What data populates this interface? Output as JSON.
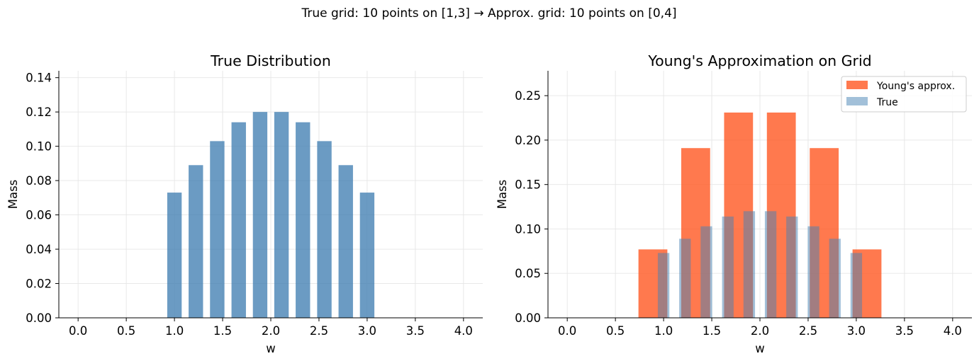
{
  "figure": {
    "suptitle": "True grid: 10 points on [1,3]  →  Approx. grid: 10 points on [0,4]"
  },
  "colors": {
    "true_bar": "#4682b4",
    "young_bar": "#ff5722",
    "grid": "#e6e6e6",
    "axis": "#000000"
  },
  "chart_data": [
    {
      "type": "bar",
      "title": "True Distribution",
      "xlabel": "w",
      "ylabel": "Mass",
      "xlim": [
        -0.2,
        4.2
      ],
      "ylim": [
        0,
        0.144
      ],
      "xticks": [
        0.0,
        0.5,
        1.0,
        1.5,
        2.0,
        2.5,
        3.0,
        3.5,
        4.0
      ],
      "xtick_labels": [
        "0.0",
        "0.5",
        "1.0",
        "1.5",
        "2.0",
        "2.5",
        "3.0",
        "3.5",
        "4.0"
      ],
      "yticks": [
        0.0,
        0.02,
        0.04,
        0.06,
        0.08,
        0.1,
        0.12,
        0.14
      ],
      "ytick_labels": [
        "0.00",
        "0.02",
        "0.04",
        "0.06",
        "0.08",
        "0.10",
        "0.12",
        "0.14"
      ],
      "grid": true,
      "legend": "none",
      "series": [
        {
          "color": "#4682b4",
          "opacity": 0.8,
          "bar_width": 0.15,
          "x": [
            1.0,
            1.222,
            1.444,
            1.667,
            1.889,
            2.111,
            2.333,
            2.556,
            2.778,
            3.0
          ],
          "values": [
            0.073,
            0.089,
            0.103,
            0.114,
            0.12,
            0.12,
            0.114,
            0.103,
            0.089,
            0.073
          ]
        }
      ]
    },
    {
      "type": "bar",
      "title": "Young's Approximation on Grid",
      "xlabel": "w",
      "ylabel": "Mass",
      "xlim": [
        -0.2,
        4.2
      ],
      "ylim": [
        0,
        0.278
      ],
      "xticks": [
        0.0,
        0.5,
        1.0,
        1.5,
        2.0,
        2.5,
        3.0,
        3.5,
        4.0
      ],
      "xtick_labels": [
        "0.0",
        "0.5",
        "1.0",
        "1.5",
        "2.0",
        "2.5",
        "3.0",
        "3.5",
        "4.0"
      ],
      "yticks": [
        0.0,
        0.05,
        0.1,
        0.15,
        0.2,
        0.25
      ],
      "ytick_labels": [
        "0.00",
        "0.05",
        "0.10",
        "0.15",
        "0.20",
        "0.25"
      ],
      "grid": true,
      "legend": "top-right",
      "series": [
        {
          "name": "Young's approx.",
          "color": "#ff5722",
          "opacity": 0.8,
          "bar_width": 0.3,
          "x": [
            0.0,
            0.444,
            0.889,
            1.333,
            1.778,
            2.222,
            2.667,
            3.111,
            3.556,
            4.0
          ],
          "values": [
            0,
            0,
            0.077,
            0.191,
            0.231,
            0.231,
            0.191,
            0.077,
            0,
            0
          ]
        },
        {
          "name": "True",
          "color": "#4682b4",
          "opacity": 0.5,
          "bar_width": 0.12,
          "x": [
            1.0,
            1.222,
            1.444,
            1.667,
            1.889,
            2.111,
            2.333,
            2.556,
            2.778,
            3.0
          ],
          "values": [
            0.073,
            0.089,
            0.103,
            0.114,
            0.12,
            0.12,
            0.114,
            0.103,
            0.089,
            0.073
          ]
        }
      ]
    }
  ]
}
